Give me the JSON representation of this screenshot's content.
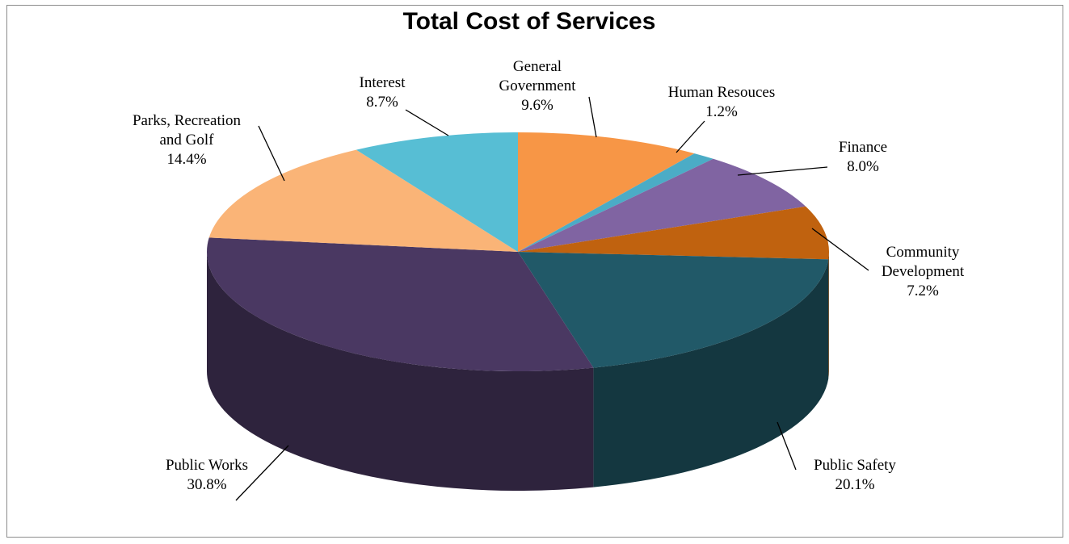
{
  "chart_data": {
    "type": "pie",
    "title": "Total Cost of Services",
    "slices": [
      {
        "label_lines": [
          "General",
          "Government"
        ],
        "pct_text": "9.6%",
        "value": 9.6,
        "color": "#f79646"
      },
      {
        "label_lines": [
          "Human Resouces"
        ],
        "pct_text": "1.2%",
        "value": 1.2,
        "color": "#4bacc6"
      },
      {
        "label_lines": [
          "Finance"
        ],
        "pct_text": "8.0%",
        "value": 8.0,
        "color": "#8064a2"
      },
      {
        "label_lines": [
          "Community",
          "Development"
        ],
        "pct_text": "7.2%",
        "value": 7.2,
        "color": "#c0620f"
      },
      {
        "label_lines": [
          "Public Safety"
        ],
        "pct_text": "20.1%",
        "value": 20.1,
        "color": "#215968"
      },
      {
        "label_lines": [
          "Public Works"
        ],
        "pct_text": "30.8%",
        "value": 30.8,
        "color": "#4a3862"
      },
      {
        "label_lines": [
          "Parks, Recreation",
          "and Golf"
        ],
        "pct_text": "14.4%",
        "value": 14.4,
        "color": "#fab477"
      },
      {
        "label_lines": [
          "Interest"
        ],
        "pct_text": "8.7%",
        "value": 8.7,
        "color": "#57bed4"
      }
    ]
  }
}
